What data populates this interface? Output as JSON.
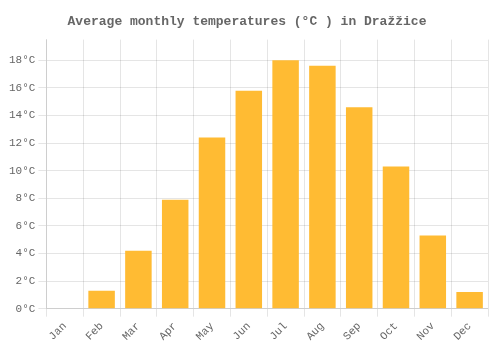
{
  "chart_data": {
    "type": "bar",
    "title": "Average monthly temperatures (°C ) in Dražžice",
    "categories": [
      "Jan",
      "Feb",
      "Mar",
      "Apr",
      "May",
      "Jun",
      "Jul",
      "Aug",
      "Sep",
      "Oct",
      "Nov",
      "Dec"
    ],
    "values": [
      0,
      1.3,
      4.2,
      7.9,
      12.4,
      15.8,
      18.0,
      17.6,
      14.6,
      10.3,
      5.3,
      1.2
    ],
    "color": "#FFBB33",
    "ylim": [
      0,
      19.5
    ],
    "yticks": [
      {
        "value": 0,
        "label": "0°C"
      },
      {
        "value": 2,
        "label": "2°C"
      },
      {
        "value": 4,
        "label": "4°C"
      },
      {
        "value": 6,
        "label": "6°C"
      },
      {
        "value": 8,
        "label": "8°C"
      },
      {
        "value": 10,
        "label": "10°C"
      },
      {
        "value": 12,
        "label": "12°C"
      },
      {
        "value": 14,
        "label": "14°C"
      },
      {
        "value": 16,
        "label": "16°C"
      },
      {
        "value": 18,
        "label": "18°C"
      }
    ],
    "grid": true
  }
}
